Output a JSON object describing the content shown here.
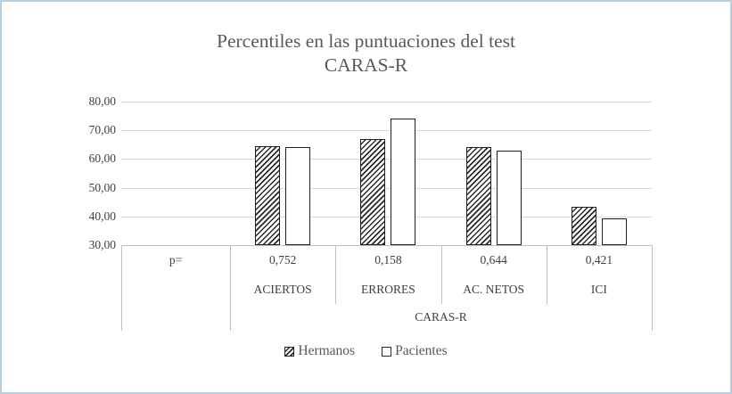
{
  "frame": {
    "border_color": "#b7cde2",
    "background": "#ffffff"
  },
  "chart_data": {
    "type": "bar",
    "title": "Percentiles en las puntuaciones del test CARAS-R",
    "title_lines": [
      "Percentiles en las puntuaciones del test",
      "CARAS-R"
    ],
    "categories": [
      "ACIERTOS",
      "ERRORES",
      "AC. NETOS",
      "ICI"
    ],
    "series": [
      {
        "name": "Hermanos",
        "style": "hatched",
        "values": [
          64.6,
          66.9,
          64.1,
          43.5
        ]
      },
      {
        "name": "Pacientes",
        "style": "white",
        "values": [
          64.3,
          74.2,
          62.9,
          39.3
        ]
      }
    ],
    "p_row": {
      "label": "p=",
      "values": [
        "0,752",
        "0,158",
        "0,644",
        "0,421"
      ]
    },
    "axis_group_label": "CARAS-R",
    "xlabel": "CARAS-R",
    "ylabel": "",
    "ylim": [
      30,
      80
    ],
    "ytick_step": 10,
    "yticks": [
      "80,00",
      "70,00",
      "60,00",
      "50,00",
      "40,00",
      "30,00"
    ],
    "grid": true,
    "legend_position": "bottom",
    "colors": {
      "title_text": "#595959",
      "axis_text": "#404040",
      "gridline": "#d9d9d9",
      "table_border": "#bfbfbf",
      "bar_outline": "#1f1f1f"
    }
  }
}
